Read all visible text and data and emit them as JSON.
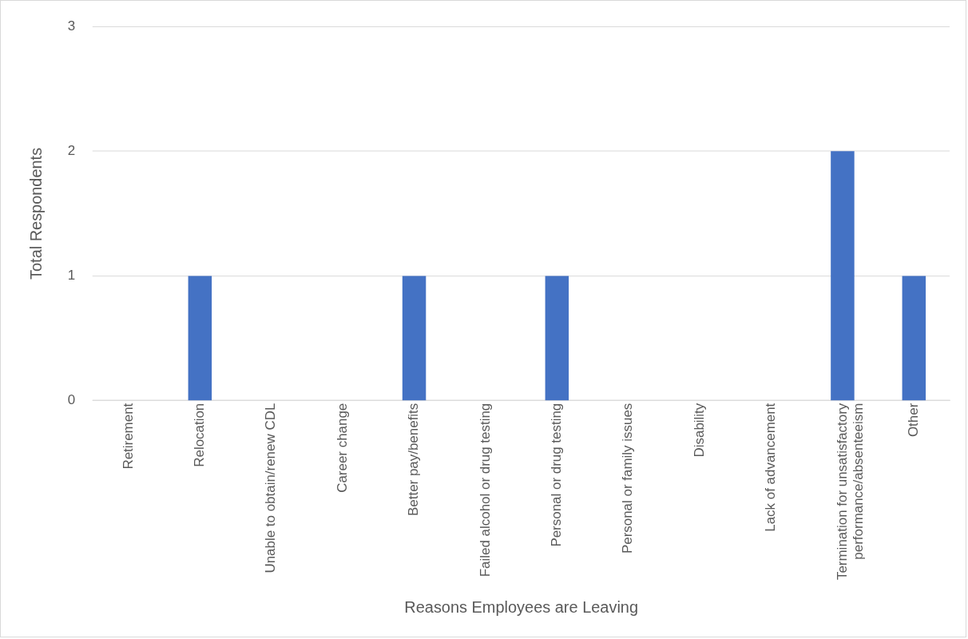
{
  "chart_data": {
    "type": "bar",
    "xlabel": "Reasons Employees are Leaving",
    "ylabel": "Total Respondents",
    "categories": [
      "Retirement",
      "Relocation",
      "Unable to obtain/renew CDL",
      "Career change",
      "Better pay/benefits",
      "Failed alcohol or drug testing",
      "Personal or drug testing",
      "Personal or family issues",
      "Disability",
      "Lack of advancement",
      "Termination for unsatisfactory performance/absenteeism",
      "Other"
    ],
    "values": [
      0,
      1,
      0,
      0,
      1,
      0,
      1,
      0,
      0,
      0,
      2,
      1
    ],
    "color": "#4472c4",
    "ylim": [
      0,
      3
    ],
    "yticks": [
      0,
      1,
      2,
      3
    ],
    "grid": "y",
    "legend": false
  }
}
